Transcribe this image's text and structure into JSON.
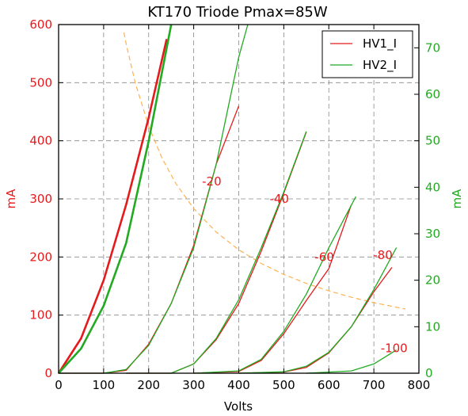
{
  "chart_data": {
    "type": "line",
    "title": "KT170 Triode Pmax=85W",
    "xlabel": "Volts",
    "ylabel_left": "mA",
    "ylabel_right": "mA",
    "xlim": [
      0,
      800
    ],
    "ylim_left": [
      0,
      600
    ],
    "ylim_right": [
      0,
      75
    ],
    "x_ticks": [
      0,
      100,
      200,
      300,
      400,
      500,
      600,
      700,
      800
    ],
    "y_left_ticks": [
      0,
      100,
      200,
      300,
      400,
      500,
      600
    ],
    "y_right_ticks": [
      0,
      10,
      20,
      30,
      40,
      50,
      60,
      70
    ],
    "grid": true,
    "legend_position": "top-right",
    "colors": {
      "hv1": "#e41a1c",
      "hv2": "#22aa22",
      "pmax": "#ffb050",
      "axis_left": "#e41a1c",
      "axis_right": "#22aa22"
    },
    "series": [
      {
        "name": "HV1_I",
        "axis": "left",
        "color": "#e41a1c",
        "curves": [
          {
            "grid_voltage": "0",
            "points": [
              [
                0,
                0
              ],
              [
                50,
                60
              ],
              [
                100,
                160
              ],
              [
                150,
                290
              ],
              [
                200,
                440
              ],
              [
                240,
                575
              ]
            ]
          },
          {
            "grid_voltage": "-20",
            "points": [
              [
                0,
                0
              ],
              [
                100,
                0
              ],
              [
                150,
                5
              ],
              [
                200,
                50
              ],
              [
                250,
                120
              ],
              [
                300,
                220
              ],
              [
                350,
                360
              ],
              [
                400,
                460
              ]
            ]
          },
          {
            "grid_voltage": "-40",
            "points": [
              [
                150,
                0
              ],
              [
                250,
                0
              ],
              [
                300,
                16
              ],
              [
                350,
                58
              ],
              [
                400,
                120
              ],
              [
                450,
                210
              ],
              [
                500,
                310
              ],
              [
                550,
                415
              ]
            ]
          },
          {
            "grid_voltage": "-60",
            "points": [
              [
                300,
                0
              ],
              [
                400,
                3
              ],
              [
                450,
                22
              ],
              [
                500,
                68
              ],
              [
                550,
                125
              ],
              [
                600,
                180
              ],
              [
                650,
                290
              ]
            ]
          },
          {
            "grid_voltage": "-80",
            "points": [
              [
                400,
                0
              ],
              [
                500,
                2
              ],
              [
                550,
                10
              ],
              [
                600,
                35
              ],
              [
                650,
                80
              ],
              [
                700,
                140
              ],
              [
                740,
                182
              ]
            ]
          }
        ]
      },
      {
        "name": "HV2_I",
        "axis": "right",
        "color": "#22aa22",
        "curves": [
          {
            "grid_voltage": "0",
            "points": [
              [
                0,
                0
              ],
              [
                50,
                5.3
              ],
              [
                100,
                14.5
              ],
              [
                150,
                28
              ],
              [
                200,
                50
              ],
              [
                250,
                75
              ]
            ]
          },
          {
            "grid_voltage": "-20",
            "points": [
              [
                0,
                0
              ],
              [
                100,
                0
              ],
              [
                150,
                0.8
              ],
              [
                200,
                6
              ],
              [
                250,
                15
              ],
              [
                300,
                27
              ],
              [
                350,
                45
              ],
              [
                400,
                68
              ],
              [
                420,
                75
              ]
            ]
          },
          {
            "grid_voltage": "-40",
            "points": [
              [
                150,
                0
              ],
              [
                250,
                0
              ],
              [
                300,
                2
              ],
              [
                350,
                7.5
              ],
              [
                400,
                15.8
              ],
              [
                450,
                27
              ],
              [
                500,
                39
              ],
              [
                550,
                52
              ]
            ]
          },
          {
            "grid_voltage": "-60",
            "points": [
              [
                300,
                0
              ],
              [
                400,
                0.5
              ],
              [
                450,
                3
              ],
              [
                500,
                9
              ],
              [
                550,
                17
              ],
              [
                600,
                27
              ],
              [
                660,
                38
              ]
            ]
          },
          {
            "grid_voltage": "-80",
            "points": [
              [
                400,
                0
              ],
              [
                500,
                0.3
              ],
              [
                550,
                1.5
              ],
              [
                600,
                4.5
              ],
              [
                650,
                10
              ],
              [
                700,
                18
              ],
              [
                750,
                27
              ]
            ]
          },
          {
            "grid_voltage": "-100",
            "points": [
              [
                550,
                0
              ],
              [
                650,
                0.5
              ],
              [
                700,
                2
              ],
              [
                750,
                5
              ]
            ]
          }
        ]
      }
    ],
    "pmax_curve": {
      "color": "#ffb050",
      "x_points": [
        145,
        150,
        170,
        200,
        230,
        260,
        300,
        350,
        400,
        450,
        500,
        550,
        600,
        650,
        700,
        770
      ]
    },
    "annotations": [
      {
        "text": "-20",
        "x": 340,
        "y": 330,
        "axis": "left",
        "color": "#e41a1c"
      },
      {
        "text": "-40",
        "x": 490,
        "y": 300,
        "axis": "left",
        "color": "#e41a1c"
      },
      {
        "text": "-60",
        "x": 590,
        "y": 200,
        "axis": "left",
        "color": "#e41a1c"
      },
      {
        "text": "-80",
        "x": 720,
        "y": 203,
        "axis": "left",
        "color": "#e41a1c"
      },
      {
        "text": "-100",
        "x": 745,
        "y": 43,
        "axis": "left",
        "color": "#e41a1c"
      }
    ]
  }
}
